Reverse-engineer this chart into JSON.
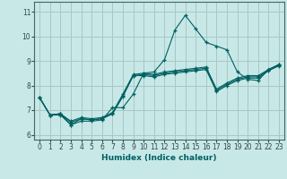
{
  "title": "",
  "xlabel": "Humidex (Indice chaleur)",
  "xlim": [
    -0.5,
    23.5
  ],
  "ylim": [
    5.8,
    11.4
  ],
  "yticks": [
    6,
    7,
    8,
    9,
    10,
    11
  ],
  "xticks": [
    0,
    1,
    2,
    3,
    4,
    5,
    6,
    7,
    8,
    9,
    10,
    11,
    12,
    13,
    14,
    15,
    16,
    17,
    18,
    19,
    20,
    21,
    22,
    23
  ],
  "bg_color": "#c8e8e8",
  "grid_color": "#a8c8c8",
  "line_color": "#006060",
  "lines": [
    [
      7.5,
      6.8,
      6.8,
      6.4,
      6.65,
      6.6,
      6.65,
      6.85,
      7.55,
      8.4,
      8.4,
      8.35,
      8.45,
      8.5,
      8.55,
      8.6,
      8.65,
      7.75,
      8.0,
      8.2,
      8.3,
      8.3,
      8.6,
      8.8
    ],
    [
      7.5,
      6.8,
      6.85,
      6.5,
      6.65,
      6.6,
      6.65,
      6.85,
      7.6,
      8.4,
      8.45,
      8.4,
      8.5,
      8.55,
      8.6,
      8.65,
      8.7,
      7.8,
      8.05,
      8.25,
      8.35,
      8.35,
      8.62,
      8.82
    ],
    [
      7.5,
      6.8,
      6.85,
      6.55,
      6.7,
      6.65,
      6.7,
      6.9,
      7.65,
      8.45,
      8.5,
      8.45,
      8.55,
      8.6,
      8.65,
      8.7,
      8.75,
      7.85,
      8.1,
      8.3,
      8.4,
      8.4,
      8.65,
      8.85
    ],
    [
      7.5,
      6.8,
      6.85,
      6.4,
      6.55,
      6.55,
      6.6,
      7.1,
      7.1,
      7.65,
      8.5,
      8.55,
      9.05,
      10.25,
      10.85,
      10.3,
      9.75,
      9.6,
      9.45,
      8.55,
      8.25,
      8.2,
      8.65,
      8.85
    ]
  ]
}
